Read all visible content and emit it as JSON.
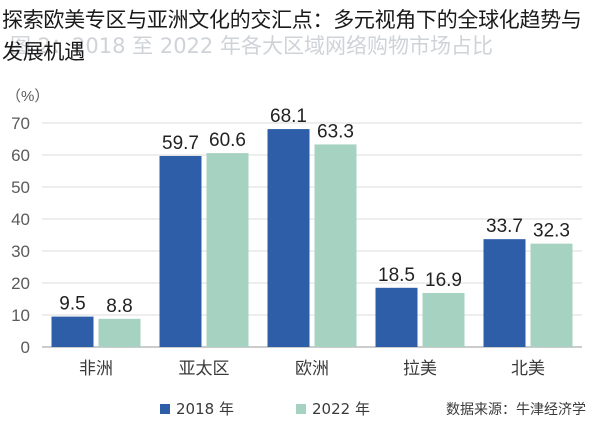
{
  "page": {
    "title": "探索欧美专区与亚洲文化的交汇点：多元视角下的全球化趋势与发展机遇",
    "faint_caption": "图 2：2018 至 2022 年各大区域网络购物市场占比"
  },
  "chart_data": {
    "type": "bar",
    "unit_label": "（%）",
    "categories": [
      "非洲",
      "亚太区",
      "欧洲",
      "拉美",
      "北美"
    ],
    "series": [
      {
        "name": "2018 年",
        "color": "#2f5ea8",
        "values": [
          9.5,
          59.7,
          68.1,
          18.5,
          33.7
        ]
      },
      {
        "name": "2022 年",
        "color": "#a6d2c2",
        "values": [
          8.8,
          60.6,
          63.3,
          16.9,
          32.3
        ]
      }
    ],
    "value_labels": [
      [
        "9.5",
        "59.7",
        "68.1",
        "18.5",
        "33.7"
      ],
      [
        "8.8",
        "60.6",
        "63.3",
        "16.9",
        "32.3"
      ]
    ],
    "ylim": [
      0,
      70
    ],
    "yticks": [
      0,
      10,
      20,
      30,
      40,
      50,
      60,
      70
    ],
    "grid": true,
    "grid_color": "#dcdcdc",
    "legend": "bottom-left",
    "source": "数据来源：牛津经济学"
  }
}
